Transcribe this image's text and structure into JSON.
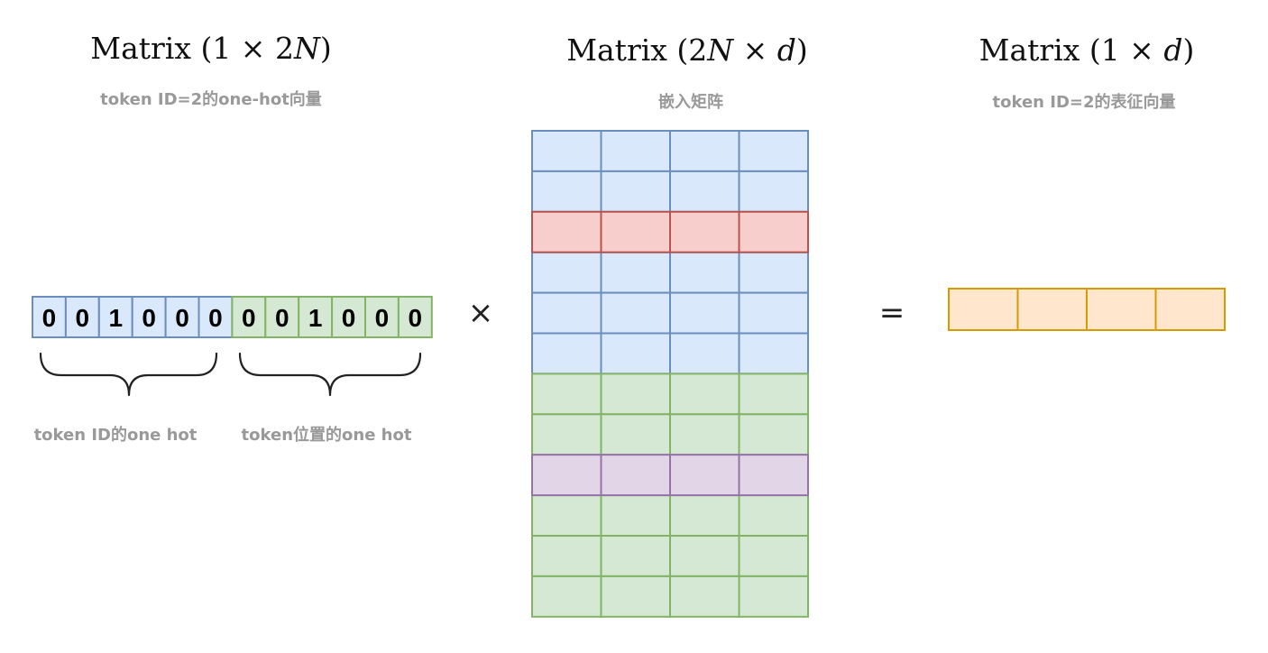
{
  "left": {
    "title_prefix": "Matrix (1 × 2",
    "title_var": "N",
    "title_suffix": ")",
    "subtitle": "token ID=2的one-hot向量",
    "token_bits": [
      "0",
      "0",
      "1",
      "0",
      "0",
      "0"
    ],
    "position_bits": [
      "0",
      "0",
      "1",
      "0",
      "0",
      "0"
    ],
    "brace_label_token": "token ID的one hot",
    "brace_label_position": "token位置的one hot"
  },
  "middle": {
    "title_prefix": "Matrix (2",
    "title_var1": "N",
    "title_mid": " × ",
    "title_var2": "d",
    "title_suffix": ")",
    "subtitle": "嵌入矩阵",
    "columns": 4,
    "row_kinds": [
      "token",
      "token",
      "token-selected",
      "token",
      "token",
      "token",
      "position",
      "position",
      "position-selected",
      "position",
      "position",
      "position"
    ]
  },
  "right": {
    "title_prefix": "Matrix (1 × ",
    "title_var": "d",
    "title_suffix": ")",
    "subtitle": "token ID=2的表征向量",
    "cells": 4
  },
  "operators": {
    "times": "×",
    "equals": "="
  },
  "colors": {
    "blue_fill": "#dae8fc",
    "blue_stroke": "#6c8ebf",
    "green_fill": "#d5e8d4",
    "green_stroke": "#82b366",
    "red_fill": "#f8cecc",
    "red_stroke": "#b85450",
    "purple_fill": "#e1d5e7",
    "purple_stroke": "#9673a6",
    "orange_fill": "#ffe6cc",
    "orange_stroke": "#d79b00"
  }
}
